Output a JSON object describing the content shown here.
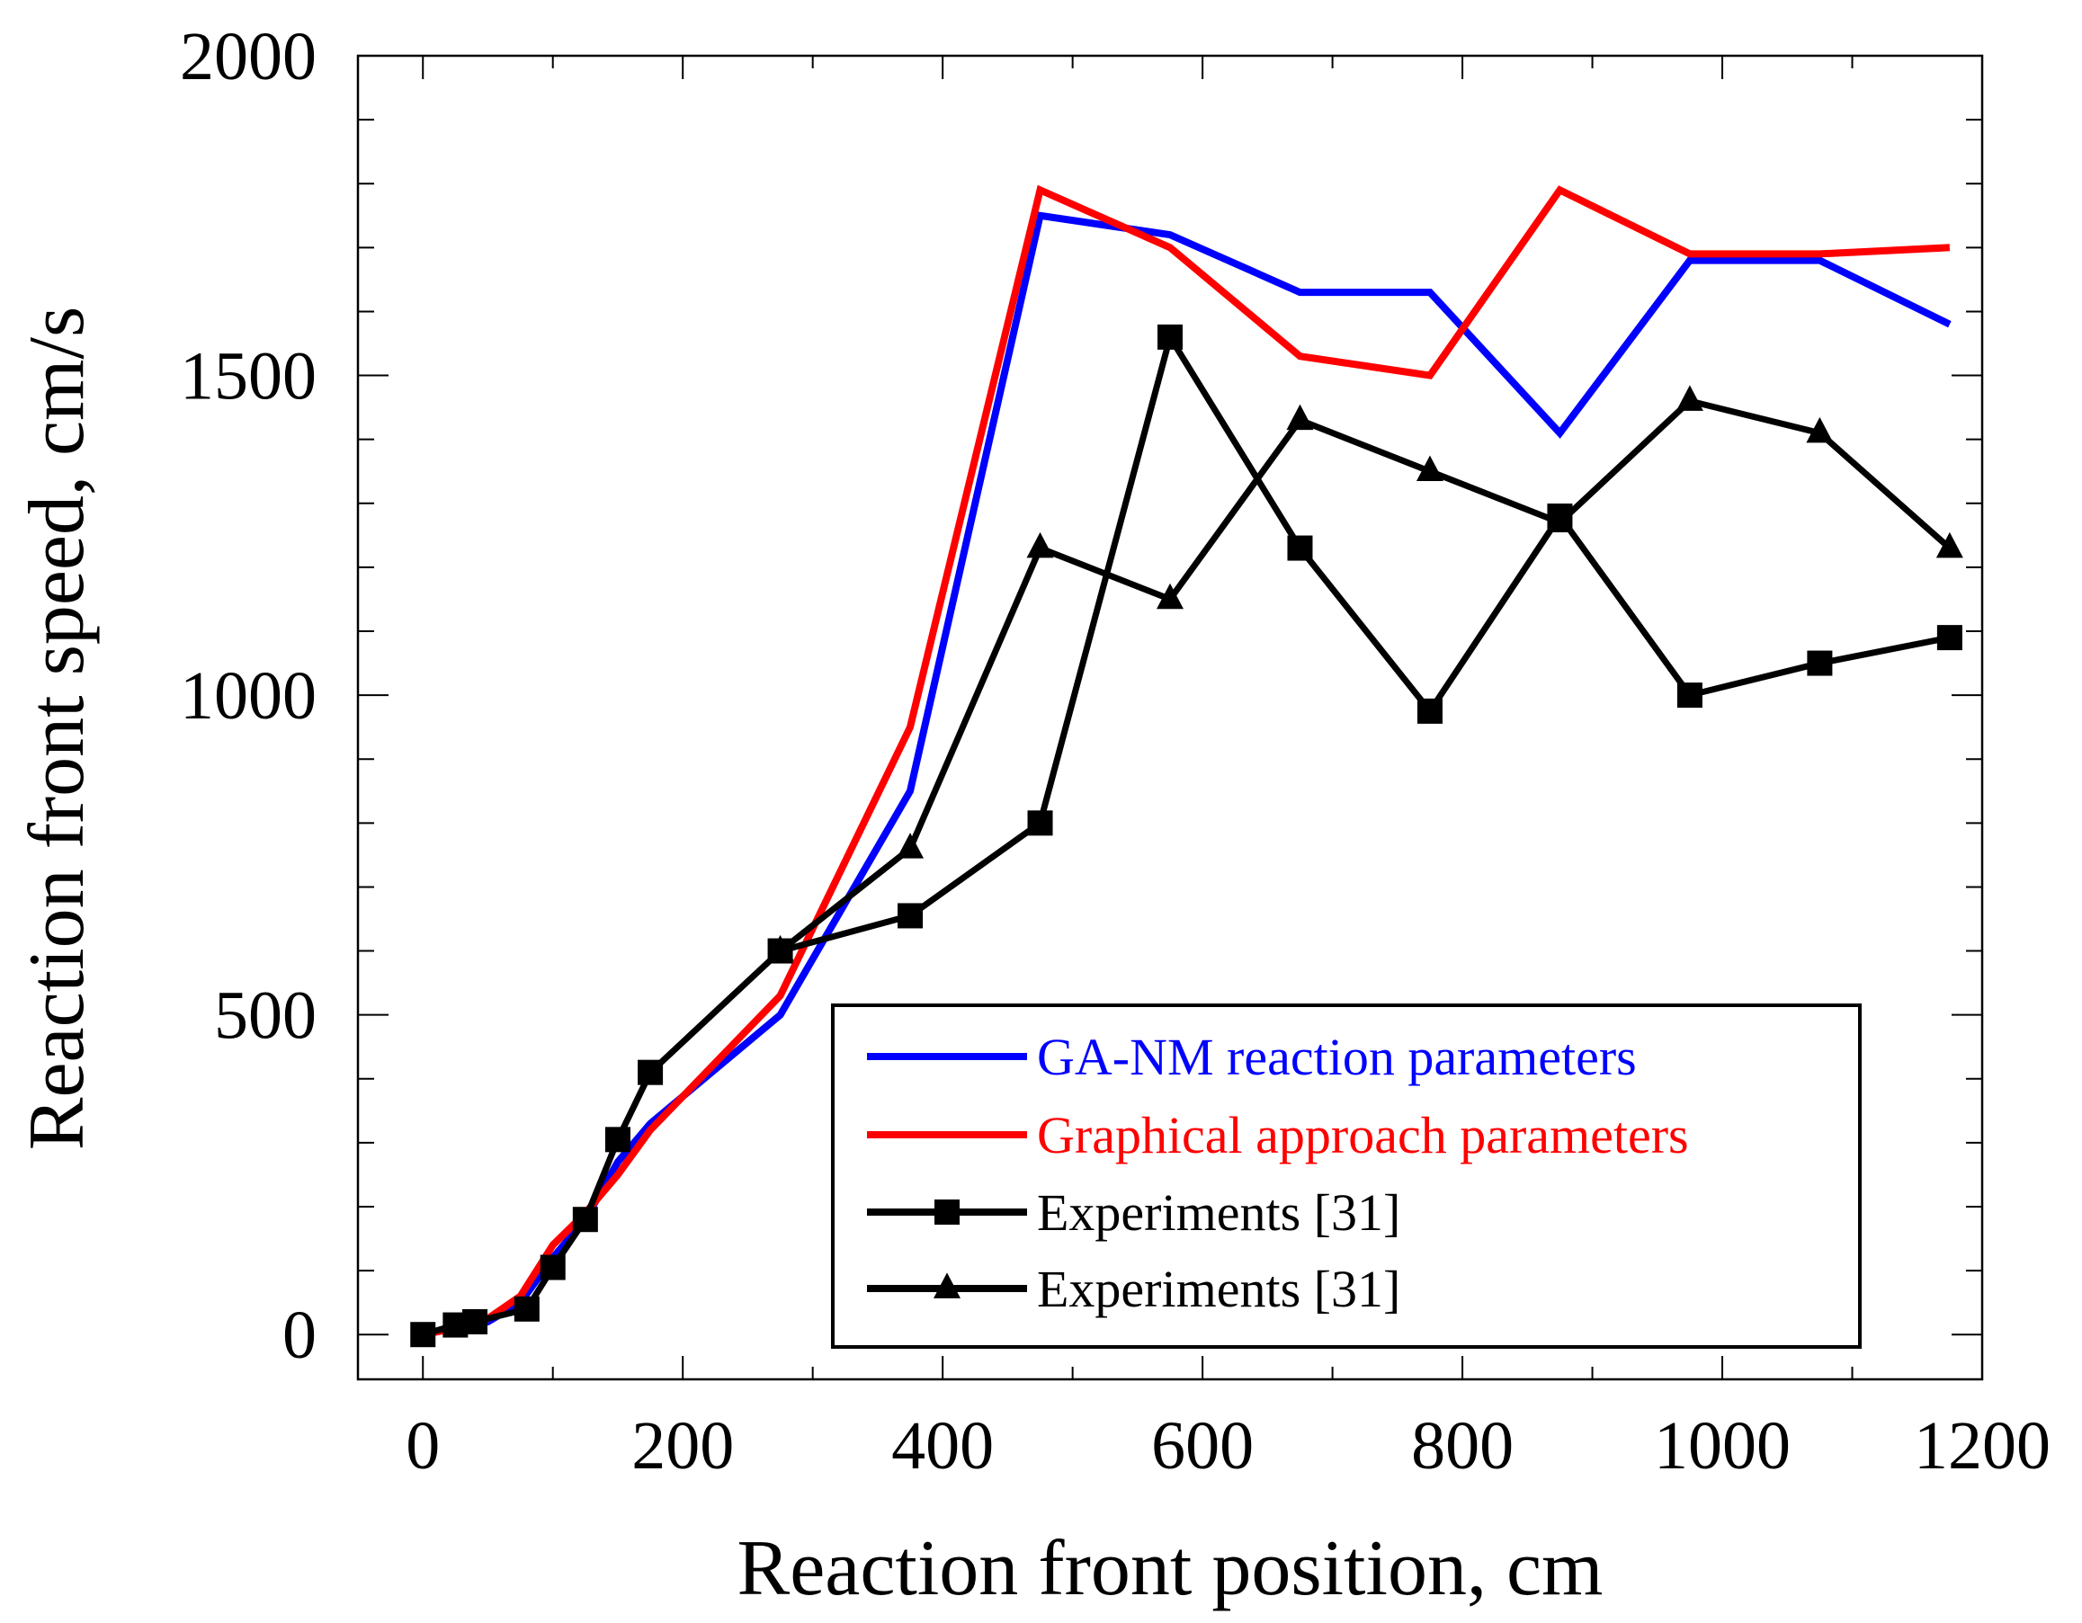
{
  "chart_data": {
    "type": "line",
    "title": "",
    "xlabel": "Reaction front position, cm",
    "ylabel": "Reaction front speed, cm/s",
    "xlim": [
      -50,
      1200
    ],
    "ylim": [
      -70,
      2000
    ],
    "xticks": [
      0,
      200,
      400,
      600,
      800,
      1000,
      1200
    ],
    "yticks": [
      0,
      500,
      1000,
      1500,
      2000
    ],
    "xtick_labels": [
      "0",
      "200",
      "400",
      "600",
      "800",
      "1000",
      "1200"
    ],
    "ytick_labels": [
      "0",
      "500",
      "1000",
      "1500",
      "2000"
    ],
    "legend_position": "lower-right",
    "series": [
      {
        "name": "GA-NM reaction parameters",
        "color": "#0000ff",
        "marker": "none",
        "x": [
          0,
          25,
          50,
          75,
          100,
          125,
          150,
          175,
          275,
          375,
          475,
          575,
          675,
          775,
          875,
          975,
          1075,
          1175
        ],
        "y": [
          0,
          10,
          20,
          50,
          120,
          180,
          270,
          330,
          500,
          850,
          1750,
          1720,
          1630,
          1630,
          1410,
          1680,
          1680,
          1580
        ]
      },
      {
        "name": "Graphical approach parameters",
        "color": "#ff0000",
        "marker": "none",
        "x": [
          0,
          25,
          50,
          75,
          100,
          125,
          150,
          175,
          275,
          375,
          475,
          575,
          675,
          775,
          875,
          975,
          1075,
          1175
        ],
        "y": [
          0,
          10,
          25,
          60,
          140,
          190,
          250,
          320,
          530,
          950,
          1790,
          1700,
          1530,
          1500,
          1790,
          1690,
          1690,
          1700
        ]
      },
      {
        "name": "Experiments [31]",
        "color": "#000000",
        "marker": "square",
        "x": [
          0,
          25,
          40,
          80,
          100,
          125,
          150,
          175,
          275,
          375,
          475,
          575,
          675,
          775,
          875,
          975,
          1075,
          1175
        ],
        "y": [
          0,
          15,
          20,
          40,
          105,
          180,
          305,
          410,
          600,
          655,
          800,
          1560,
          1230,
          975,
          1280,
          1000,
          1050,
          1090
        ]
      },
      {
        "name": "Experiments [31]",
        "color": "#000000",
        "marker": "triangle",
        "x": [
          275,
          375,
          475,
          575,
          675,
          775,
          875,
          975,
          1075,
          1175
        ],
        "y": [
          600,
          760,
          1230,
          1150,
          1430,
          1350,
          1270,
          1460,
          1410,
          1230
        ]
      }
    ]
  }
}
